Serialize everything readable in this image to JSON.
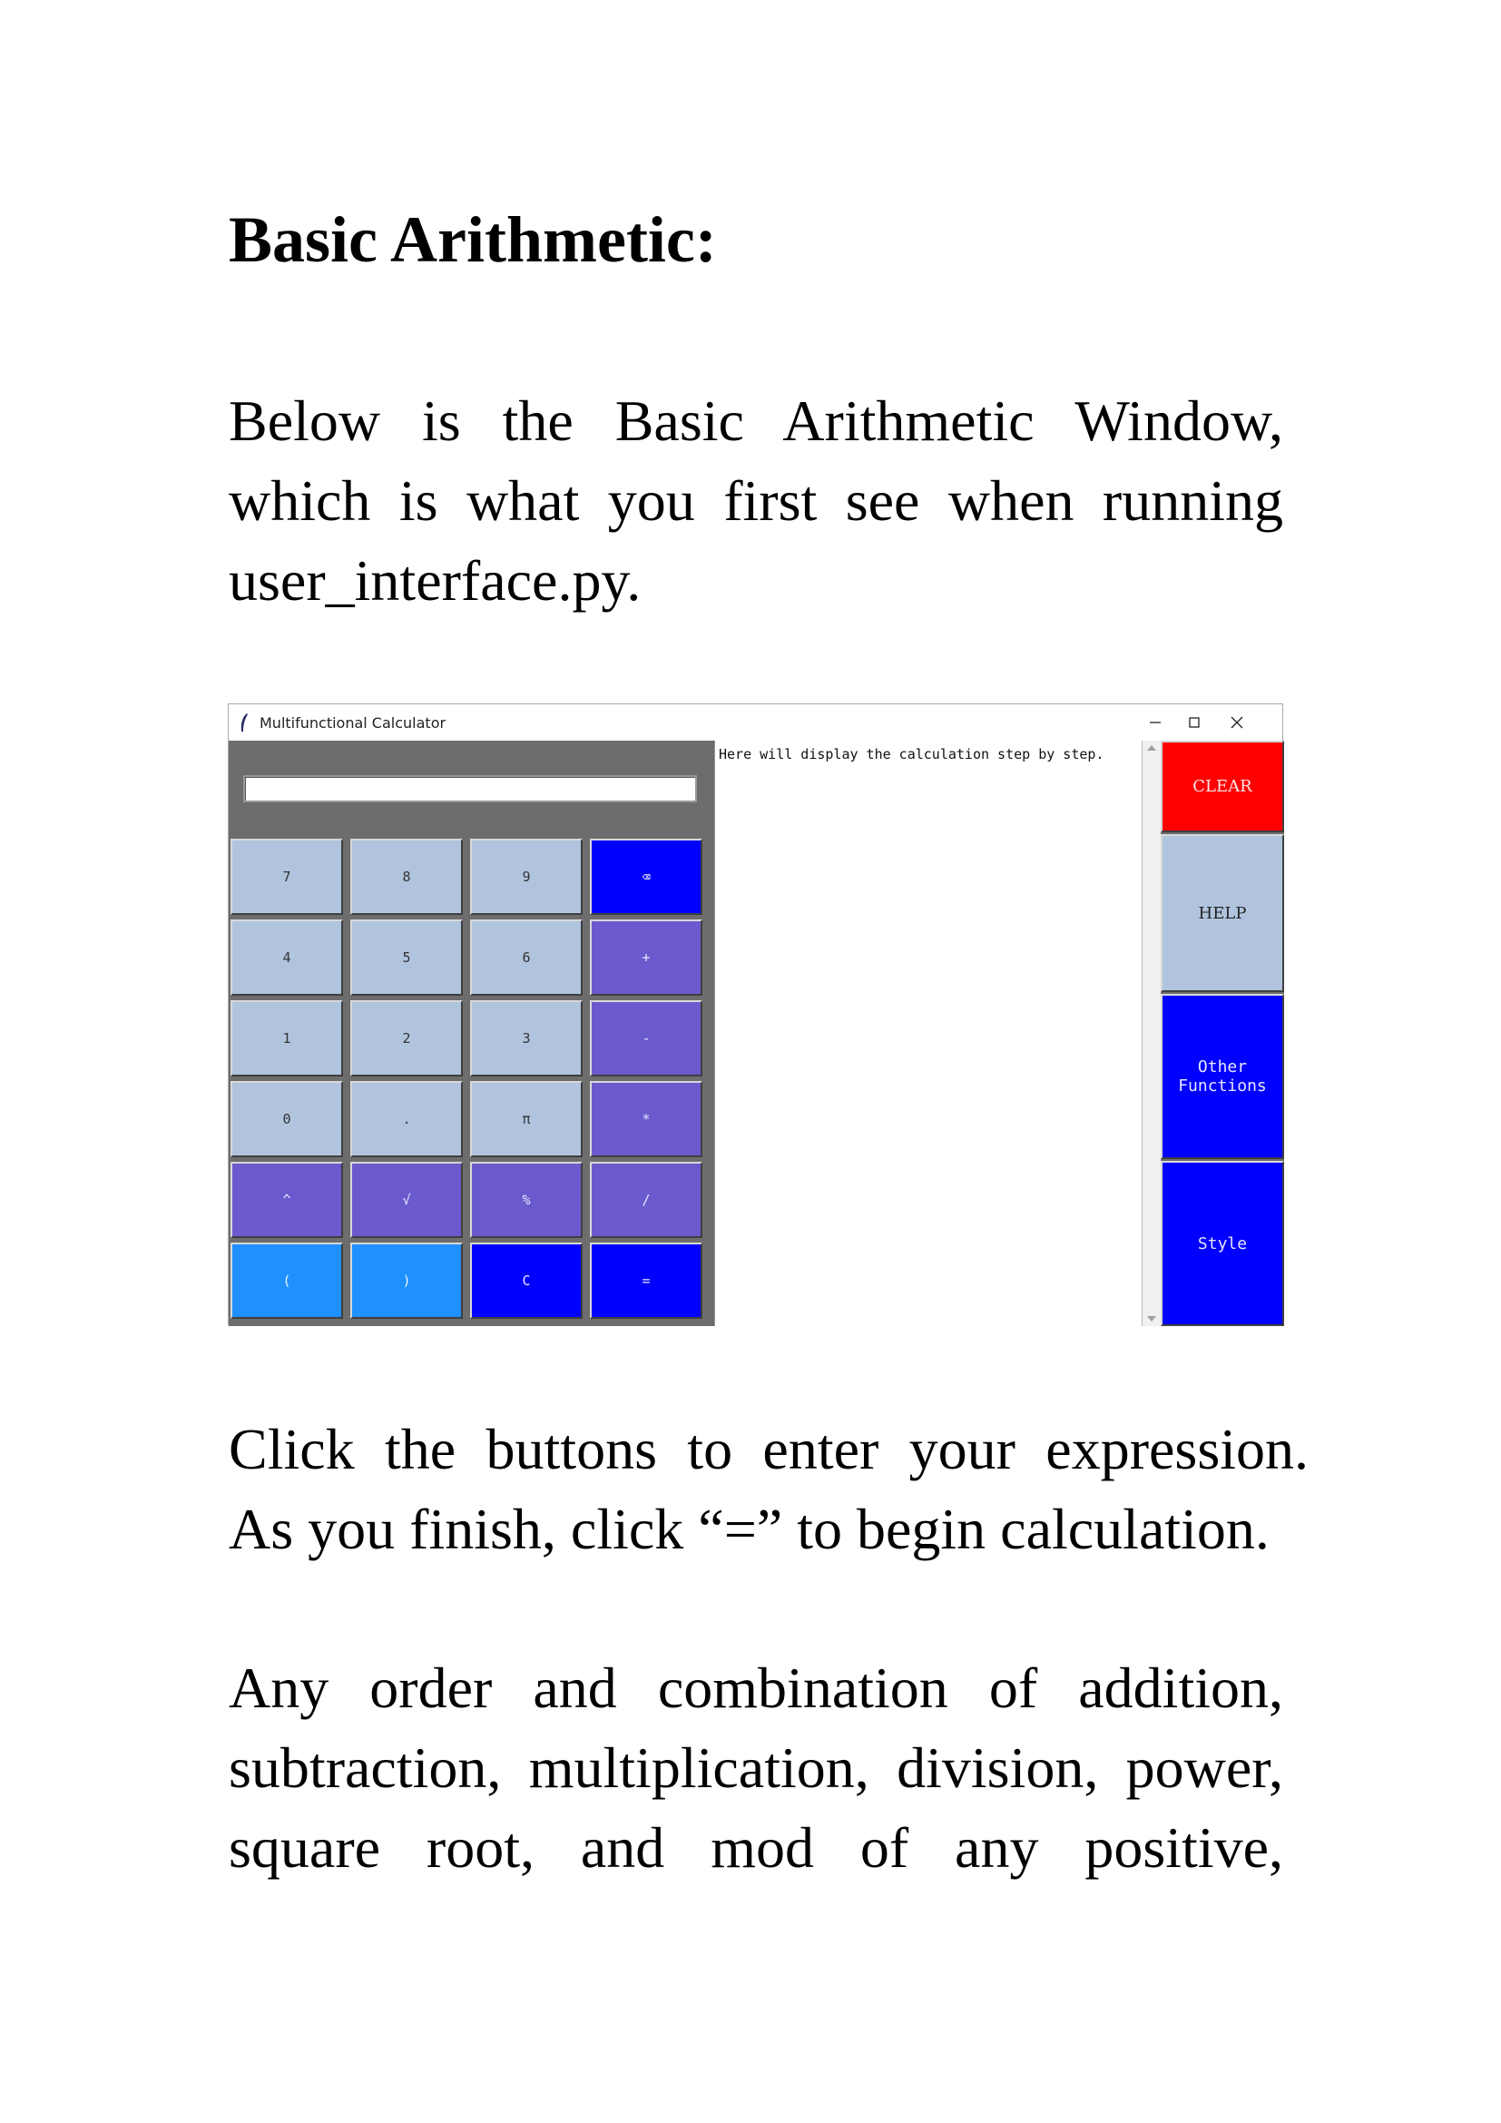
{
  "doc": {
    "heading": "Basic Arithmetic:",
    "p1": [
      "Below is the Basic Arithmetic Window,",
      "which is what you first see when running",
      "user_interface.py."
    ],
    "p2": [
      "Click the buttons to enter your expression.",
      "As you finish, click “=” to begin calculation."
    ],
    "p3": [
      "Any order and combination of addition,",
      "subtraction, multiplication, division, power,",
      "square root, and mod of any positive,"
    ]
  },
  "window": {
    "title": "Multifunctional Calculator",
    "entry_value": "",
    "output_text": "Here will display the calculation step by step.",
    "keys": [
      [
        "7",
        "8",
        "9",
        "⌫"
      ],
      [
        "4",
        "5",
        "6",
        "+"
      ],
      [
        "1",
        "2",
        "3",
        "-"
      ],
      [
        "0",
        ".",
        "π",
        "*"
      ],
      [
        "^",
        "√",
        "%",
        "/"
      ],
      [
        "(",
        ")",
        "C",
        "="
      ]
    ],
    "side": {
      "clear": "CLEAR",
      "help": "HELP",
      "other": "Other\nFunctions",
      "style": "Style"
    },
    "colors": {
      "keypad_bg": "#6d6d6d",
      "num_key": "#b0c4de",
      "op_key": "#6a5acd",
      "blue_key": "#0000ff",
      "paren_key": "#1e90ff",
      "clear_btn": "#ff0000",
      "help_btn": "#b0c4de"
    }
  }
}
